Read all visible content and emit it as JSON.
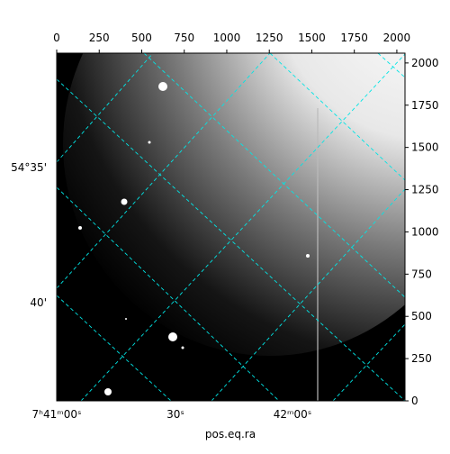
{
  "chart_data": {
    "type": "image",
    "xlabel": "pos.eq.ra",
    "xlim": [
      0,
      2048
    ],
    "ylim": [
      0,
      2058
    ],
    "xticks": [
      0,
      250,
      500,
      750,
      1000,
      1250,
      1500,
      1750,
      2000
    ],
    "yticks": [
      0,
      250,
      500,
      750,
      1000,
      1250,
      1500,
      1750,
      2000
    ],
    "world_xticks": [
      "7ʰ41ᵐ00ˢ",
      "30ˢ",
      "42ᵐ00ˢ"
    ],
    "world_yticks": [
      "54°35'",
      "40'"
    ],
    "grid_color": "#00e5e5"
  }
}
